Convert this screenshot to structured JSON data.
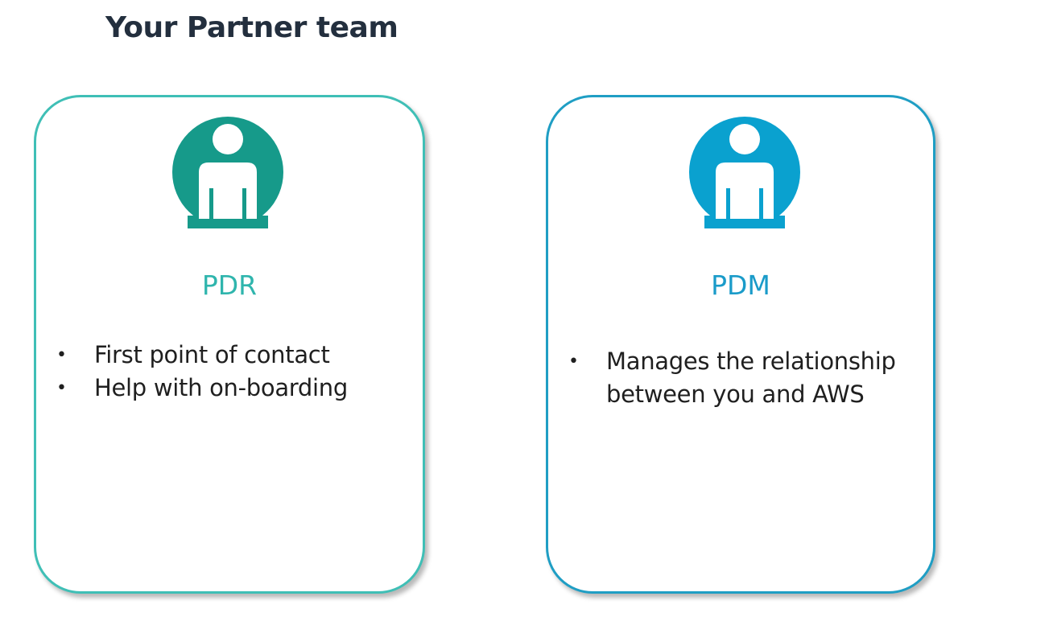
{
  "page": {
    "title": "Your Partner team"
  },
  "cards": [
    {
      "role": "PDR",
      "icon": "person-icon",
      "accent_color": "#3fbfb6",
      "icon_color": "#169a8a",
      "bullets": [
        "First point of contact",
        "Help with on-boarding"
      ]
    },
    {
      "role": "PDM",
      "icon": "person-icon",
      "accent_color": "#1f9ec4",
      "icon_color": "#0aa1cf",
      "bullets": [
        "Manages the relationship between you and AWS"
      ]
    }
  ]
}
